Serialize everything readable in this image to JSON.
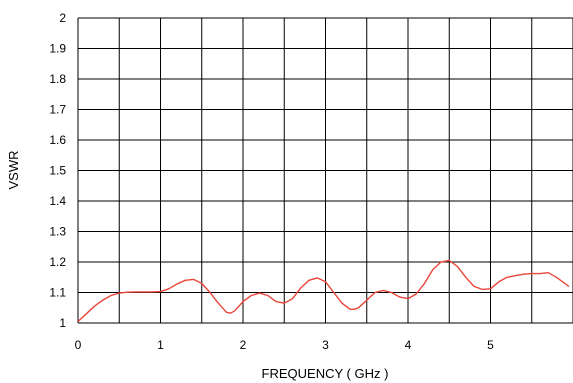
{
  "chart_data": {
    "type": "line",
    "title": "",
    "xlabel": "FREQUENCY ( GHz )",
    "ylabel": "VSWR",
    "xlim": [
      0,
      6
    ],
    "ylim": [
      1,
      2
    ],
    "grid": true,
    "x_ticks": [
      "0",
      "1",
      "2",
      "3",
      "4",
      "5"
    ],
    "y_ticks": [
      "1",
      "1.1",
      "1.2",
      "1.3",
      "1.4",
      "1.5",
      "1.6",
      "1.7",
      "1.8",
      "1.9",
      "2"
    ],
    "series": [
      {
        "color": "#e8463a",
        "x": [
          0,
          0.1,
          0.2,
          0.3,
          0.4,
          0.5,
          0.6,
          0.7,
          0.8,
          0.9,
          1.0,
          1.1,
          1.2,
          1.3,
          1.4,
          1.5,
          1.6,
          1.7,
          1.8,
          1.85,
          1.9,
          2.0,
          2.1,
          2.2,
          2.3,
          2.4,
          2.5,
          2.6,
          2.7,
          2.8,
          2.9,
          3.0,
          3.1,
          3.2,
          3.3,
          3.35,
          3.4,
          3.5,
          3.6,
          3.7,
          3.8,
          3.9,
          4.0,
          4.1,
          4.2,
          4.3,
          4.4,
          4.5,
          4.6,
          4.7,
          4.8,
          4.9,
          5.0,
          5.1,
          5.2,
          5.3,
          5.4,
          5.5,
          5.6,
          5.7,
          5.8,
          5.9,
          5.95
        ],
        "y": [
          1.005,
          1.03,
          1.055,
          1.075,
          1.09,
          1.098,
          1.101,
          1.102,
          1.102,
          1.102,
          1.103,
          1.112,
          1.128,
          1.14,
          1.143,
          1.13,
          1.1,
          1.065,
          1.035,
          1.032,
          1.04,
          1.07,
          1.09,
          1.098,
          1.09,
          1.07,
          1.065,
          1.08,
          1.115,
          1.14,
          1.148,
          1.135,
          1.1,
          1.065,
          1.045,
          1.045,
          1.05,
          1.075,
          1.1,
          1.107,
          1.1,
          1.085,
          1.08,
          1.095,
          1.13,
          1.175,
          1.2,
          1.205,
          1.185,
          1.15,
          1.12,
          1.11,
          1.112,
          1.135,
          1.15,
          1.155,
          1.16,
          1.162,
          1.162,
          1.165,
          1.15,
          1.13,
          1.12
        ]
      }
    ]
  }
}
